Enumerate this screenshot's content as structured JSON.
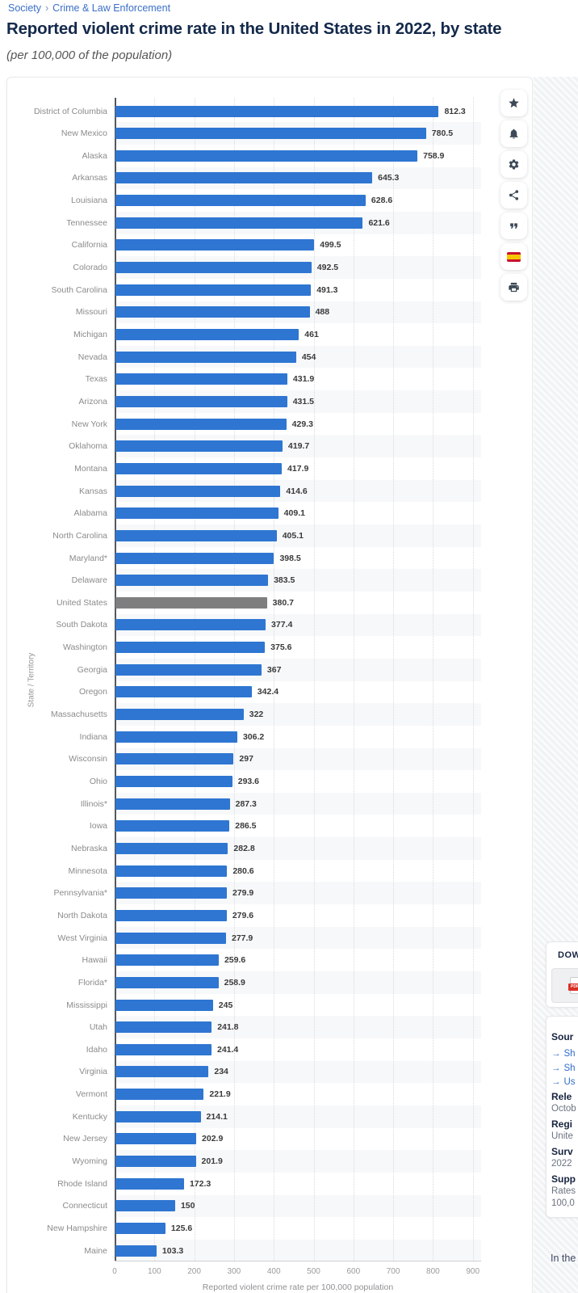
{
  "breadcrumb": {
    "separator": "›",
    "items": [
      "Society",
      "Crime & Law Enforcement"
    ]
  },
  "header": {
    "title": "Reported violent crime rate in the United States in 2022, by state",
    "subtitle": "(per 100,000 of the population)"
  },
  "toolbar": {
    "buttons": [
      {
        "name": "favorite",
        "icon": "star-icon"
      },
      {
        "name": "alerts",
        "icon": "bell-icon"
      },
      {
        "name": "settings",
        "icon": "gear-icon"
      },
      {
        "name": "share",
        "icon": "share-icon"
      },
      {
        "name": "cite",
        "icon": "quote-icon"
      },
      {
        "name": "language-spain",
        "icon": "spain-flag-icon"
      },
      {
        "name": "print",
        "icon": "printer-icon"
      }
    ]
  },
  "chart_data": {
    "type": "bar",
    "orientation": "horizontal",
    "title": "Reported violent crime rate in the United States in 2022, by state",
    "xlabel": "Reported violent crime rate per 100,000 population",
    "ylabel": "State / Territory",
    "xlim": [
      0,
      900
    ],
    "xticks": [
      0,
      100,
      200,
      300,
      400,
      500,
      600,
      700,
      800,
      900
    ],
    "grid": "vertical-dotted",
    "legend": "none",
    "highlight_category": "United States",
    "categories": [
      "District of Columbia",
      "New Mexico",
      "Alaska",
      "Arkansas",
      "Louisiana",
      "Tennessee",
      "California",
      "Colorado",
      "South Carolina",
      "Missouri",
      "Michigan",
      "Nevada",
      "Texas",
      "Arizona",
      "New York",
      "Oklahoma",
      "Montana",
      "Kansas",
      "Alabama",
      "North Carolina",
      "Maryland*",
      "Delaware",
      "United States",
      "South Dakota",
      "Washington",
      "Georgia",
      "Oregon",
      "Massachusetts",
      "Indiana",
      "Wisconsin",
      "Ohio",
      "Illinois*",
      "Iowa",
      "Nebraska",
      "Minnesota",
      "Pennsylvania*",
      "North Dakota",
      "West Virginia",
      "Hawaii",
      "Florida*",
      "Mississippi",
      "Utah",
      "Idaho",
      "Virginia",
      "Vermont",
      "Kentucky",
      "New Jersey",
      "Wyoming",
      "Rhode Island",
      "Connecticut",
      "New Hampshire",
      "Maine"
    ],
    "values": [
      812.3,
      780.5,
      758.9,
      645.3,
      628.6,
      621.6,
      499.5,
      492.5,
      491.3,
      488,
      461,
      454,
      431.9,
      431.5,
      429.3,
      419.7,
      417.9,
      414.6,
      409.1,
      405.1,
      398.5,
      383.5,
      380.7,
      377.4,
      375.6,
      367,
      342.4,
      322,
      306.2,
      297,
      293.6,
      287.3,
      286.5,
      282.8,
      280.6,
      279.9,
      279.6,
      277.9,
      259.6,
      258.9,
      245,
      241.8,
      241.4,
      234,
      221.9,
      214.1,
      202.9,
      201.9,
      172.3,
      150,
      125.6,
      103.3
    ]
  },
  "colors": {
    "bar": "#2e76d2",
    "bar_highlight": "#7f7f7f",
    "link": "#3a6fc7",
    "title_text": "#14294b"
  },
  "side_panel": {
    "download": {
      "heading": "DOW",
      "pdf_label": "PDF"
    },
    "details": {
      "source_heading": "Sour",
      "link_arrow": "→",
      "source_links": [
        "Sh",
        "Sh",
        "Us"
      ],
      "sections": [
        {
          "heading": "Rele",
          "lines": [
            "Octob"
          ]
        },
        {
          "heading": "Regi",
          "lines": [
            "Unite"
          ]
        },
        {
          "heading": "Surv",
          "lines": [
            "2022"
          ]
        },
        {
          "heading": "Supp",
          "lines": [
            "Rates",
            "100,0"
          ]
        }
      ]
    },
    "body_text": "In the"
  }
}
